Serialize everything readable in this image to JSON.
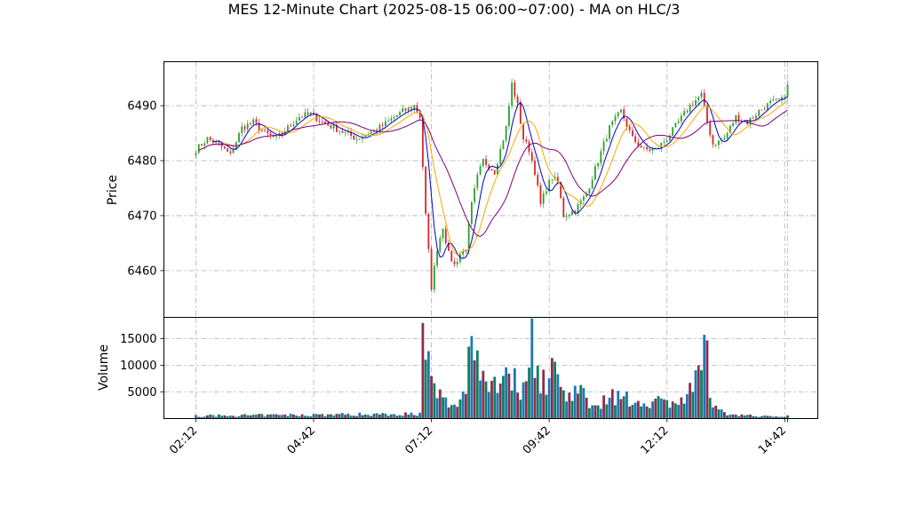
{
  "chart_data": {
    "type": "candlestick",
    "title": "MES 12-Minute Chart (2025-08-15 06:00~07:00) - MA on HLC/3",
    "price_panel": {
      "ylabel": "Price",
      "yticks": [
        6460,
        6470,
        6480,
        6490
      ],
      "ylim": [
        6451.5,
        6498.0
      ]
    },
    "volume_panel": {
      "ylabel": "Volume",
      "yticks": [
        5000,
        10000,
        15000
      ],
      "ylim": [
        0,
        19000
      ]
    },
    "x_tick_labels": [
      "02:12",
      "04:42",
      "07:12",
      "09:42",
      "12:12",
      "14:42",
      ""
    ],
    "grid": true,
    "colors": {
      "up": "#2ca02c",
      "down": "#d62728",
      "ma_fast": "#0000cc",
      "ma_mid": "#ffa500",
      "ma_slow": "#800080",
      "vol_a": "#1f77b4",
      "vol_b": "#8c2d4f",
      "vol_c": "#0e7f5e"
    },
    "price_anchors": [
      [
        0,
        6482
      ],
      [
        4,
        6484
      ],
      [
        8,
        6483
      ],
      [
        12,
        6481
      ],
      [
        16,
        6486
      ],
      [
        20,
        6487
      ],
      [
        24,
        6485
      ],
      [
        28,
        6484
      ],
      [
        32,
        6486
      ],
      [
        36,
        6488
      ],
      [
        40,
        6488.5
      ],
      [
        44,
        6487
      ],
      [
        48,
        6486
      ],
      [
        52,
        6485
      ],
      [
        56,
        6484
      ],
      [
        60,
        6485
      ],
      [
        64,
        6486
      ],
      [
        68,
        6487.5
      ],
      [
        72,
        6489
      ],
      [
        76,
        6490
      ],
      [
        78,
        6488
      ],
      [
        80,
        6470
      ],
      [
        82,
        6457
      ],
      [
        84,
        6464
      ],
      [
        86,
        6468
      ],
      [
        88,
        6463
      ],
      [
        90,
        6461
      ],
      [
        92,
        6463
      ],
      [
        94,
        6464
      ],
      [
        96,
        6472
      ],
      [
        98,
        6477
      ],
      [
        100,
        6480
      ],
      [
        104,
        6478
      ],
      [
        108,
        6486
      ],
      [
        110,
        6494
      ],
      [
        112,
        6490
      ],
      [
        114,
        6484
      ],
      [
        116,
        6482
      ],
      [
        118,
        6478
      ],
      [
        120,
        6472
      ],
      [
        122,
        6475
      ],
      [
        124,
        6477
      ],
      [
        126,
        6476
      ],
      [
        128,
        6470
      ],
      [
        132,
        6471
      ],
      [
        136,
        6474
      ],
      [
        140,
        6480
      ],
      [
        144,
        6486
      ],
      [
        148,
        6489
      ],
      [
        152,
        6484
      ],
      [
        156,
        6482
      ],
      [
        160,
        6482
      ],
      [
        164,
        6484
      ],
      [
        168,
        6487
      ],
      [
        172,
        6490
      ],
      [
        176,
        6492
      ],
      [
        178,
        6487
      ],
      [
        180,
        6483
      ],
      [
        184,
        6484
      ],
      [
        188,
        6488
      ],
      [
        192,
        6487
      ],
      [
        196,
        6489
      ],
      [
        200,
        6490.5
      ],
      [
        204,
        6491
      ],
      [
        206,
        6493.5
      ]
    ],
    "volume_anchors": [
      [
        0,
        500
      ],
      [
        78,
        900
      ],
      [
        79,
        14000
      ],
      [
        80,
        13500
      ],
      [
        81,
        9500
      ],
      [
        82,
        6000
      ],
      [
        86,
        3500
      ],
      [
        90,
        2000
      ],
      [
        94,
        6000
      ],
      [
        95,
        16500
      ],
      [
        100,
        8000
      ],
      [
        104,
        7000
      ],
      [
        108,
        9000
      ],
      [
        110,
        8000
      ],
      [
        112,
        6000
      ],
      [
        114,
        5000
      ],
      [
        117,
        17500
      ],
      [
        119,
        9000
      ],
      [
        122,
        6000
      ],
      [
        124,
        10000
      ],
      [
        128,
        5000
      ],
      [
        132,
        5500
      ],
      [
        136,
        3500
      ],
      [
        140,
        3000
      ],
      [
        146,
        4500
      ],
      [
        152,
        3000
      ],
      [
        158,
        3500
      ],
      [
        164,
        3000
      ],
      [
        170,
        3500
      ],
      [
        176,
        8000
      ],
      [
        177,
        16000
      ],
      [
        178,
        12000
      ],
      [
        180,
        2000
      ],
      [
        184,
        1000
      ],
      [
        190,
        700
      ],
      [
        196,
        400
      ],
      [
        206,
        500
      ]
    ]
  }
}
